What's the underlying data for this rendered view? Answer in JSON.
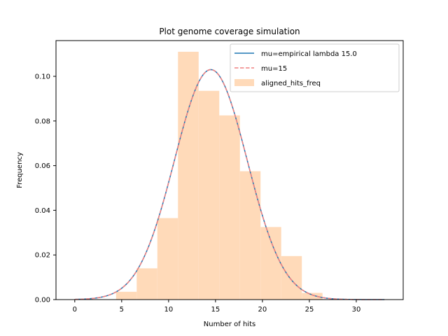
{
  "chart_data": {
    "type": "bar",
    "title": "Plot genome coverage simulation",
    "xlabel": "Number of hits",
    "ylabel": "Frequency",
    "xlim": [
      -2,
      35
    ],
    "ylim": [
      0,
      0.116
    ],
    "xticks": [
      0,
      5,
      10,
      15,
      20,
      25,
      30
    ],
    "yticks": [
      0.0,
      0.02,
      0.04,
      0.06,
      0.08,
      0.1
    ],
    "ytick_labels": [
      "0.00",
      "0.02",
      "0.04",
      "0.06",
      "0.08",
      "0.10"
    ],
    "grid": false,
    "legend_position": "top-right",
    "histogram": {
      "name": "aligned_hits_freq",
      "color": "#ffdab9",
      "bins": [
        {
          "x0": 4.4,
          "x1": 6.6,
          "value": 0.0035
        },
        {
          "x0": 6.6,
          "x1": 8.8,
          "value": 0.014
        },
        {
          "x0": 8.8,
          "x1": 11.0,
          "value": 0.0365
        },
        {
          "x0": 11.0,
          "x1": 13.2,
          "value": 0.111
        },
        {
          "x0": 13.2,
          "x1": 15.4,
          "value": 0.0935
        },
        {
          "x0": 15.4,
          "x1": 17.6,
          "value": 0.0825
        },
        {
          "x0": 17.6,
          "x1": 19.8,
          "value": 0.0575
        },
        {
          "x0": 19.8,
          "x1": 22.0,
          "value": 0.0325
        },
        {
          "x0": 22.0,
          "x1": 24.2,
          "value": 0.0195
        },
        {
          "x0": 24.2,
          "x1": 26.4,
          "value": 0.003
        }
      ]
    },
    "series": [
      {
        "name": "mu=empirical lambda 15.0",
        "style": "solid",
        "color": "#1f77b4",
        "lambda": 15.0,
        "x_range": [
          0,
          33
        ]
      },
      {
        "name": "mu=15",
        "style": "dashed",
        "color": "#f08080",
        "lambda": 15,
        "x_range": [
          0,
          33
        ]
      }
    ]
  }
}
